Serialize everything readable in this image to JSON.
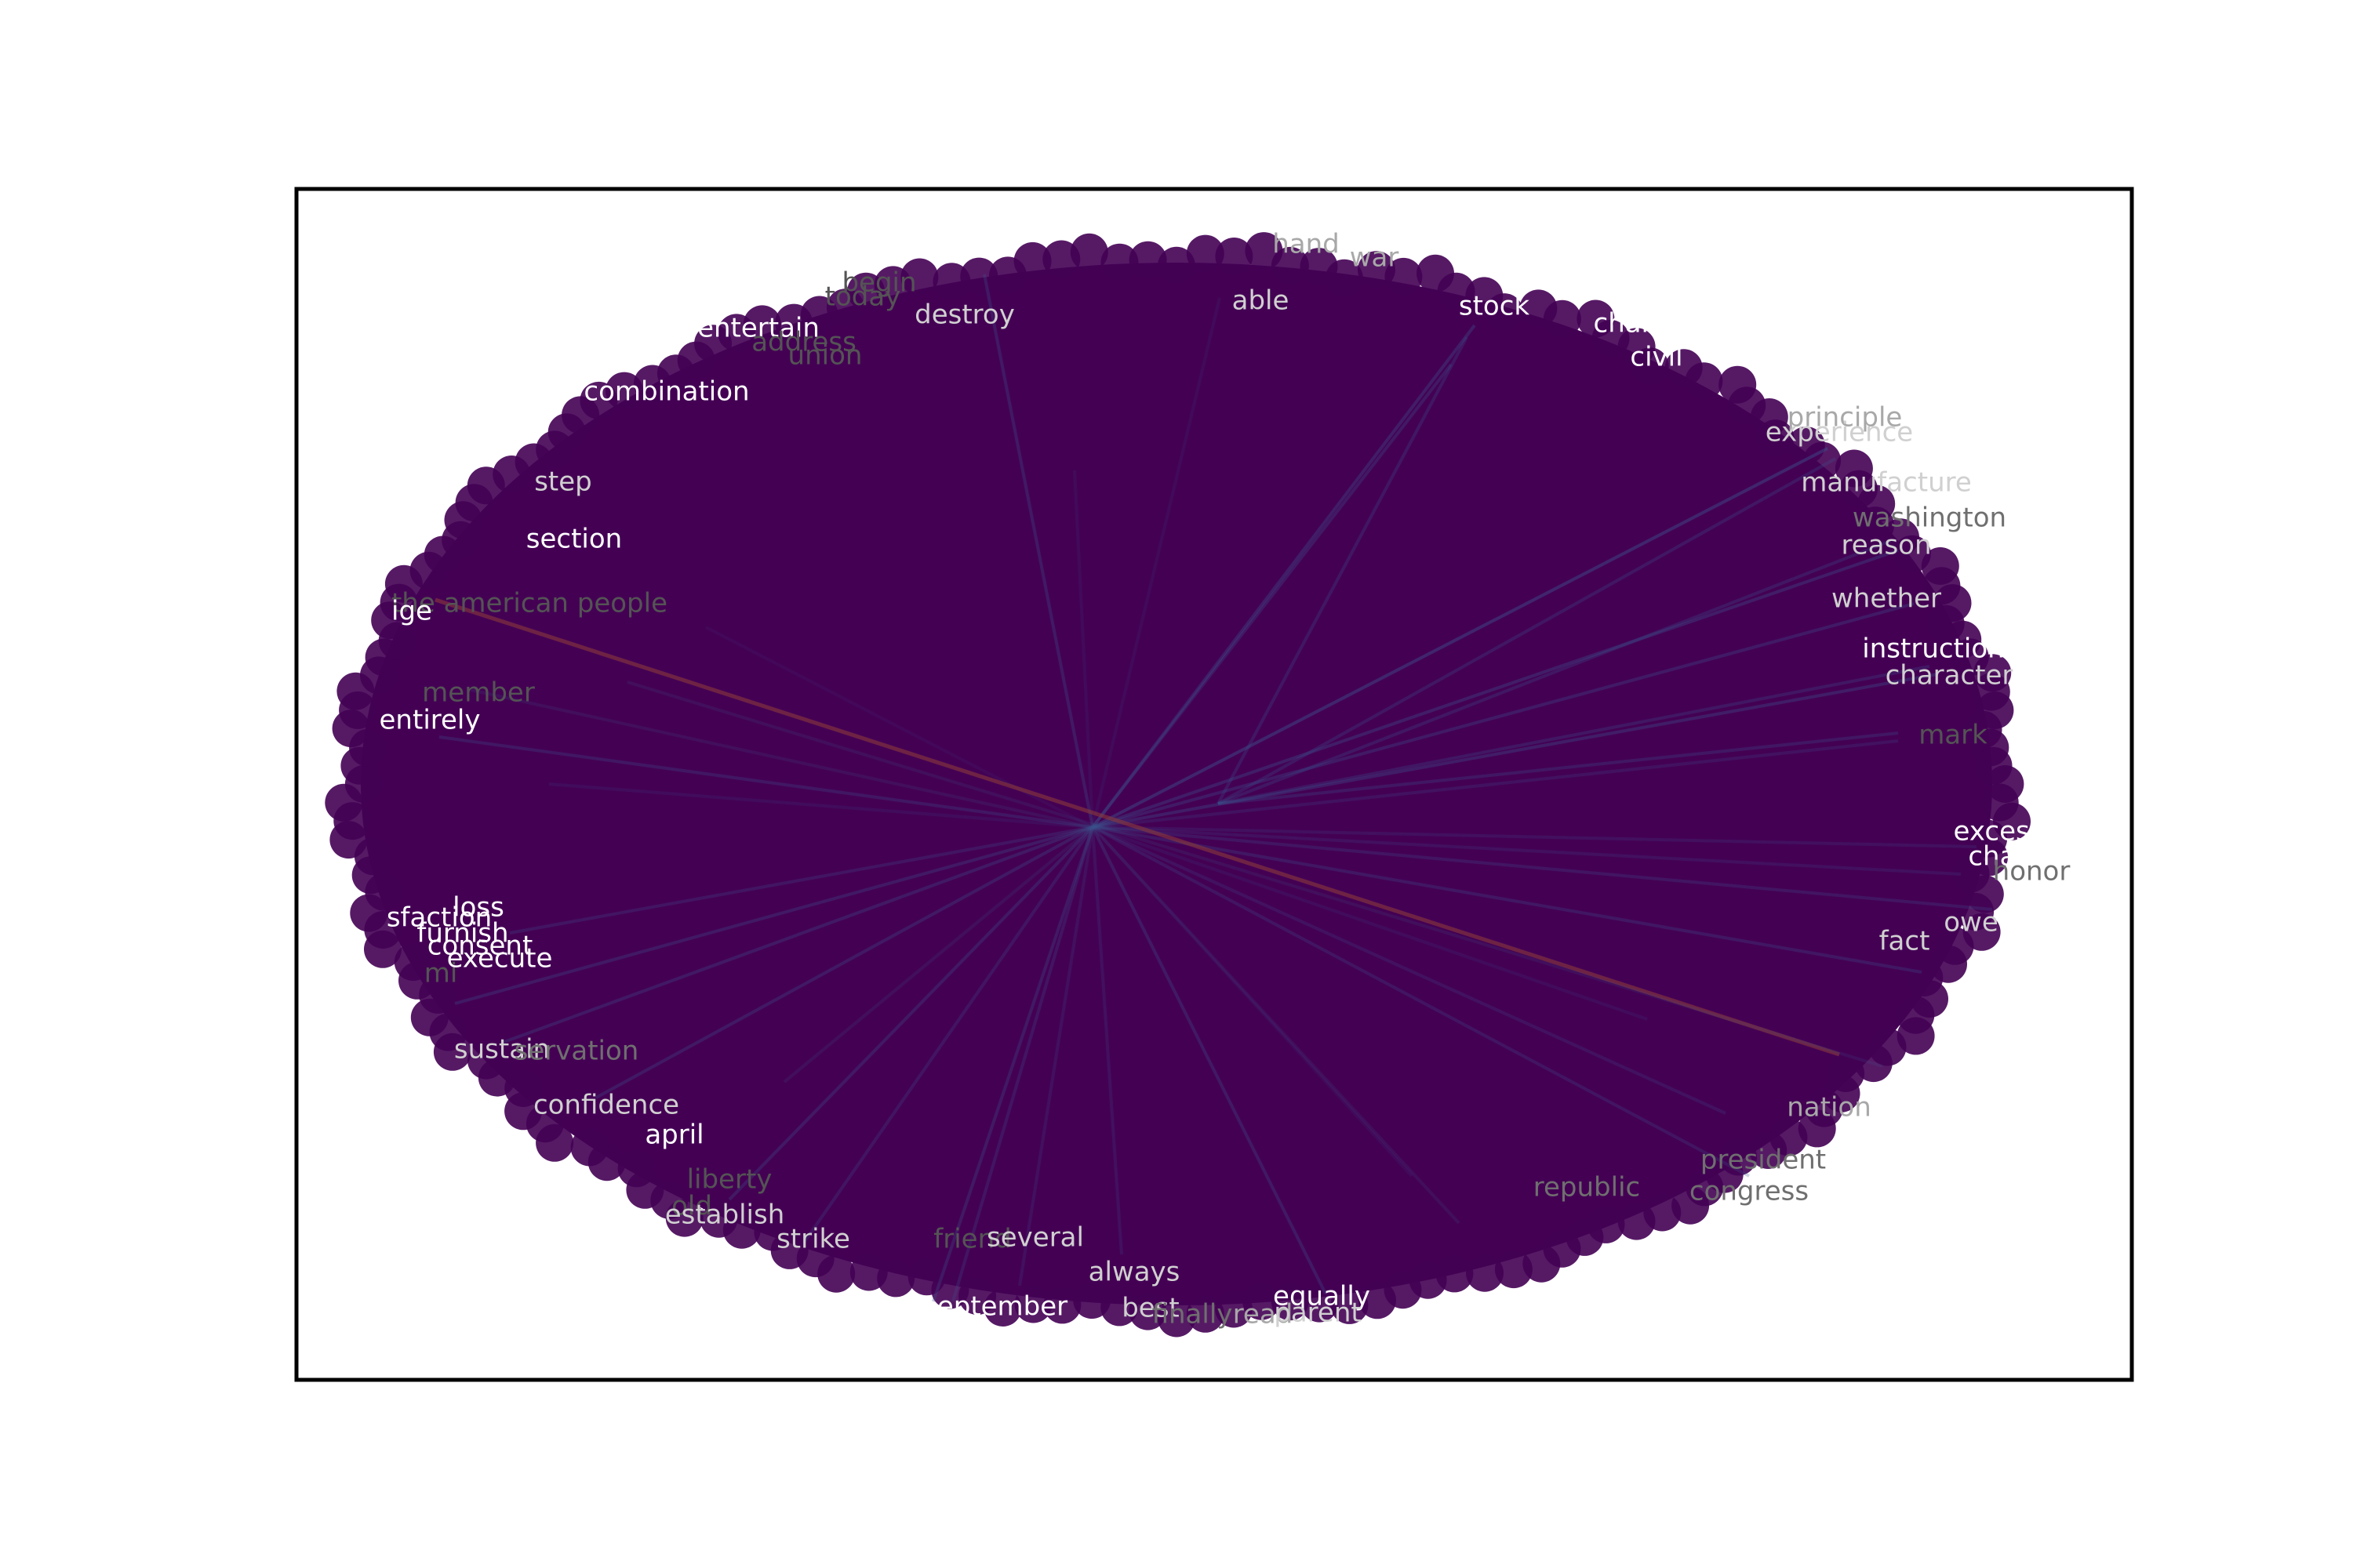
{
  "graph": {
    "type": "word-network",
    "hub_word": "",
    "colors": {
      "background": "#ffffff",
      "frame": "#000000",
      "node_fill": "#440154",
      "edge_blue": "#3b528b",
      "edge_red": "#8b3a3a",
      "word_bright": "#ffffff",
      "word_light": "#d0d0d0",
      "word_mid": "#a8a8a8",
      "word_dim": "#6f6f6f",
      "word_faint": "#545454"
    },
    "words": [
      {
        "text": "hand",
        "shade": "mid"
      },
      {
        "text": "war",
        "shade": "mid"
      },
      {
        "text": "begin",
        "shade": "faint"
      },
      {
        "text": "today",
        "shade": "faint"
      },
      {
        "text": "destroy",
        "shade": "light"
      },
      {
        "text": "able",
        "shade": "light"
      },
      {
        "text": "stock",
        "shade": "bright"
      },
      {
        "text": "entertain",
        "shade": "bright"
      },
      {
        "text": "address",
        "shade": "faint"
      },
      {
        "text": "union",
        "shade": "faint"
      },
      {
        "text": "charge",
        "shade": "bright"
      },
      {
        "text": "civil",
        "shade": "bright"
      },
      {
        "text": "combination",
        "shade": "bright"
      },
      {
        "text": "principle",
        "shade": "mid"
      },
      {
        "text": "experience",
        "shade": "light"
      },
      {
        "text": "step",
        "shade": "light"
      },
      {
        "text": "manufacture",
        "shade": "light"
      },
      {
        "text": "washington",
        "shade": "dim"
      },
      {
        "text": "section",
        "shade": "bright"
      },
      {
        "text": "reason",
        "shade": "light"
      },
      {
        "text": "the american people",
        "shade": "faint"
      },
      {
        "text": "ige",
        "shade": "bright"
      },
      {
        "text": "whether",
        "shade": "light"
      },
      {
        "text": "instruction",
        "shade": "bright"
      },
      {
        "text": "character",
        "shade": "light"
      },
      {
        "text": "member",
        "shade": "faint"
      },
      {
        "text": "entirely",
        "shade": "bright"
      },
      {
        "text": "mark",
        "shade": "faint"
      },
      {
        "text": "excess",
        "shade": "bright"
      },
      {
        "text": "chanc",
        "shade": "bright"
      },
      {
        "text": "honor",
        "shade": "dim"
      },
      {
        "text": "loss",
        "shade": "bright"
      },
      {
        "text": "sfaction",
        "shade": "bright"
      },
      {
        "text": "furnish",
        "shade": "bright"
      },
      {
        "text": "owe",
        "shade": "light"
      },
      {
        "text": "consent",
        "shade": "bright"
      },
      {
        "text": "fact",
        "shade": "light"
      },
      {
        "text": "execute",
        "shade": "bright"
      },
      {
        "text": "mi",
        "shade": "faint"
      },
      {
        "text": "sustain",
        "shade": "light"
      },
      {
        "text": "servation",
        "shade": "dim"
      },
      {
        "text": "confidence",
        "shade": "light"
      },
      {
        "text": "nation",
        "shade": "mid"
      },
      {
        "text": "april",
        "shade": "bright"
      },
      {
        "text": "president",
        "shade": "dim"
      },
      {
        "text": "liberty",
        "shade": "faint"
      },
      {
        "text": "republic",
        "shade": "dim"
      },
      {
        "text": "congress",
        "shade": "dim"
      },
      {
        "text": "old",
        "shade": "faint"
      },
      {
        "text": "establish",
        "shade": "light"
      },
      {
        "text": "strike",
        "shade": "light"
      },
      {
        "text": "friend",
        "shade": "faint"
      },
      {
        "text": "several",
        "shade": "light"
      },
      {
        "text": "always",
        "shade": "light"
      },
      {
        "text": "equally",
        "shade": "bright"
      },
      {
        "text": "eptember",
        "shade": "bright"
      },
      {
        "text": "best",
        "shade": "light"
      },
      {
        "text": "finally",
        "shade": "dim"
      },
      {
        "text": "read",
        "shade": "mid"
      },
      {
        "text": "parent",
        "shade": "light"
      }
    ]
  }
}
